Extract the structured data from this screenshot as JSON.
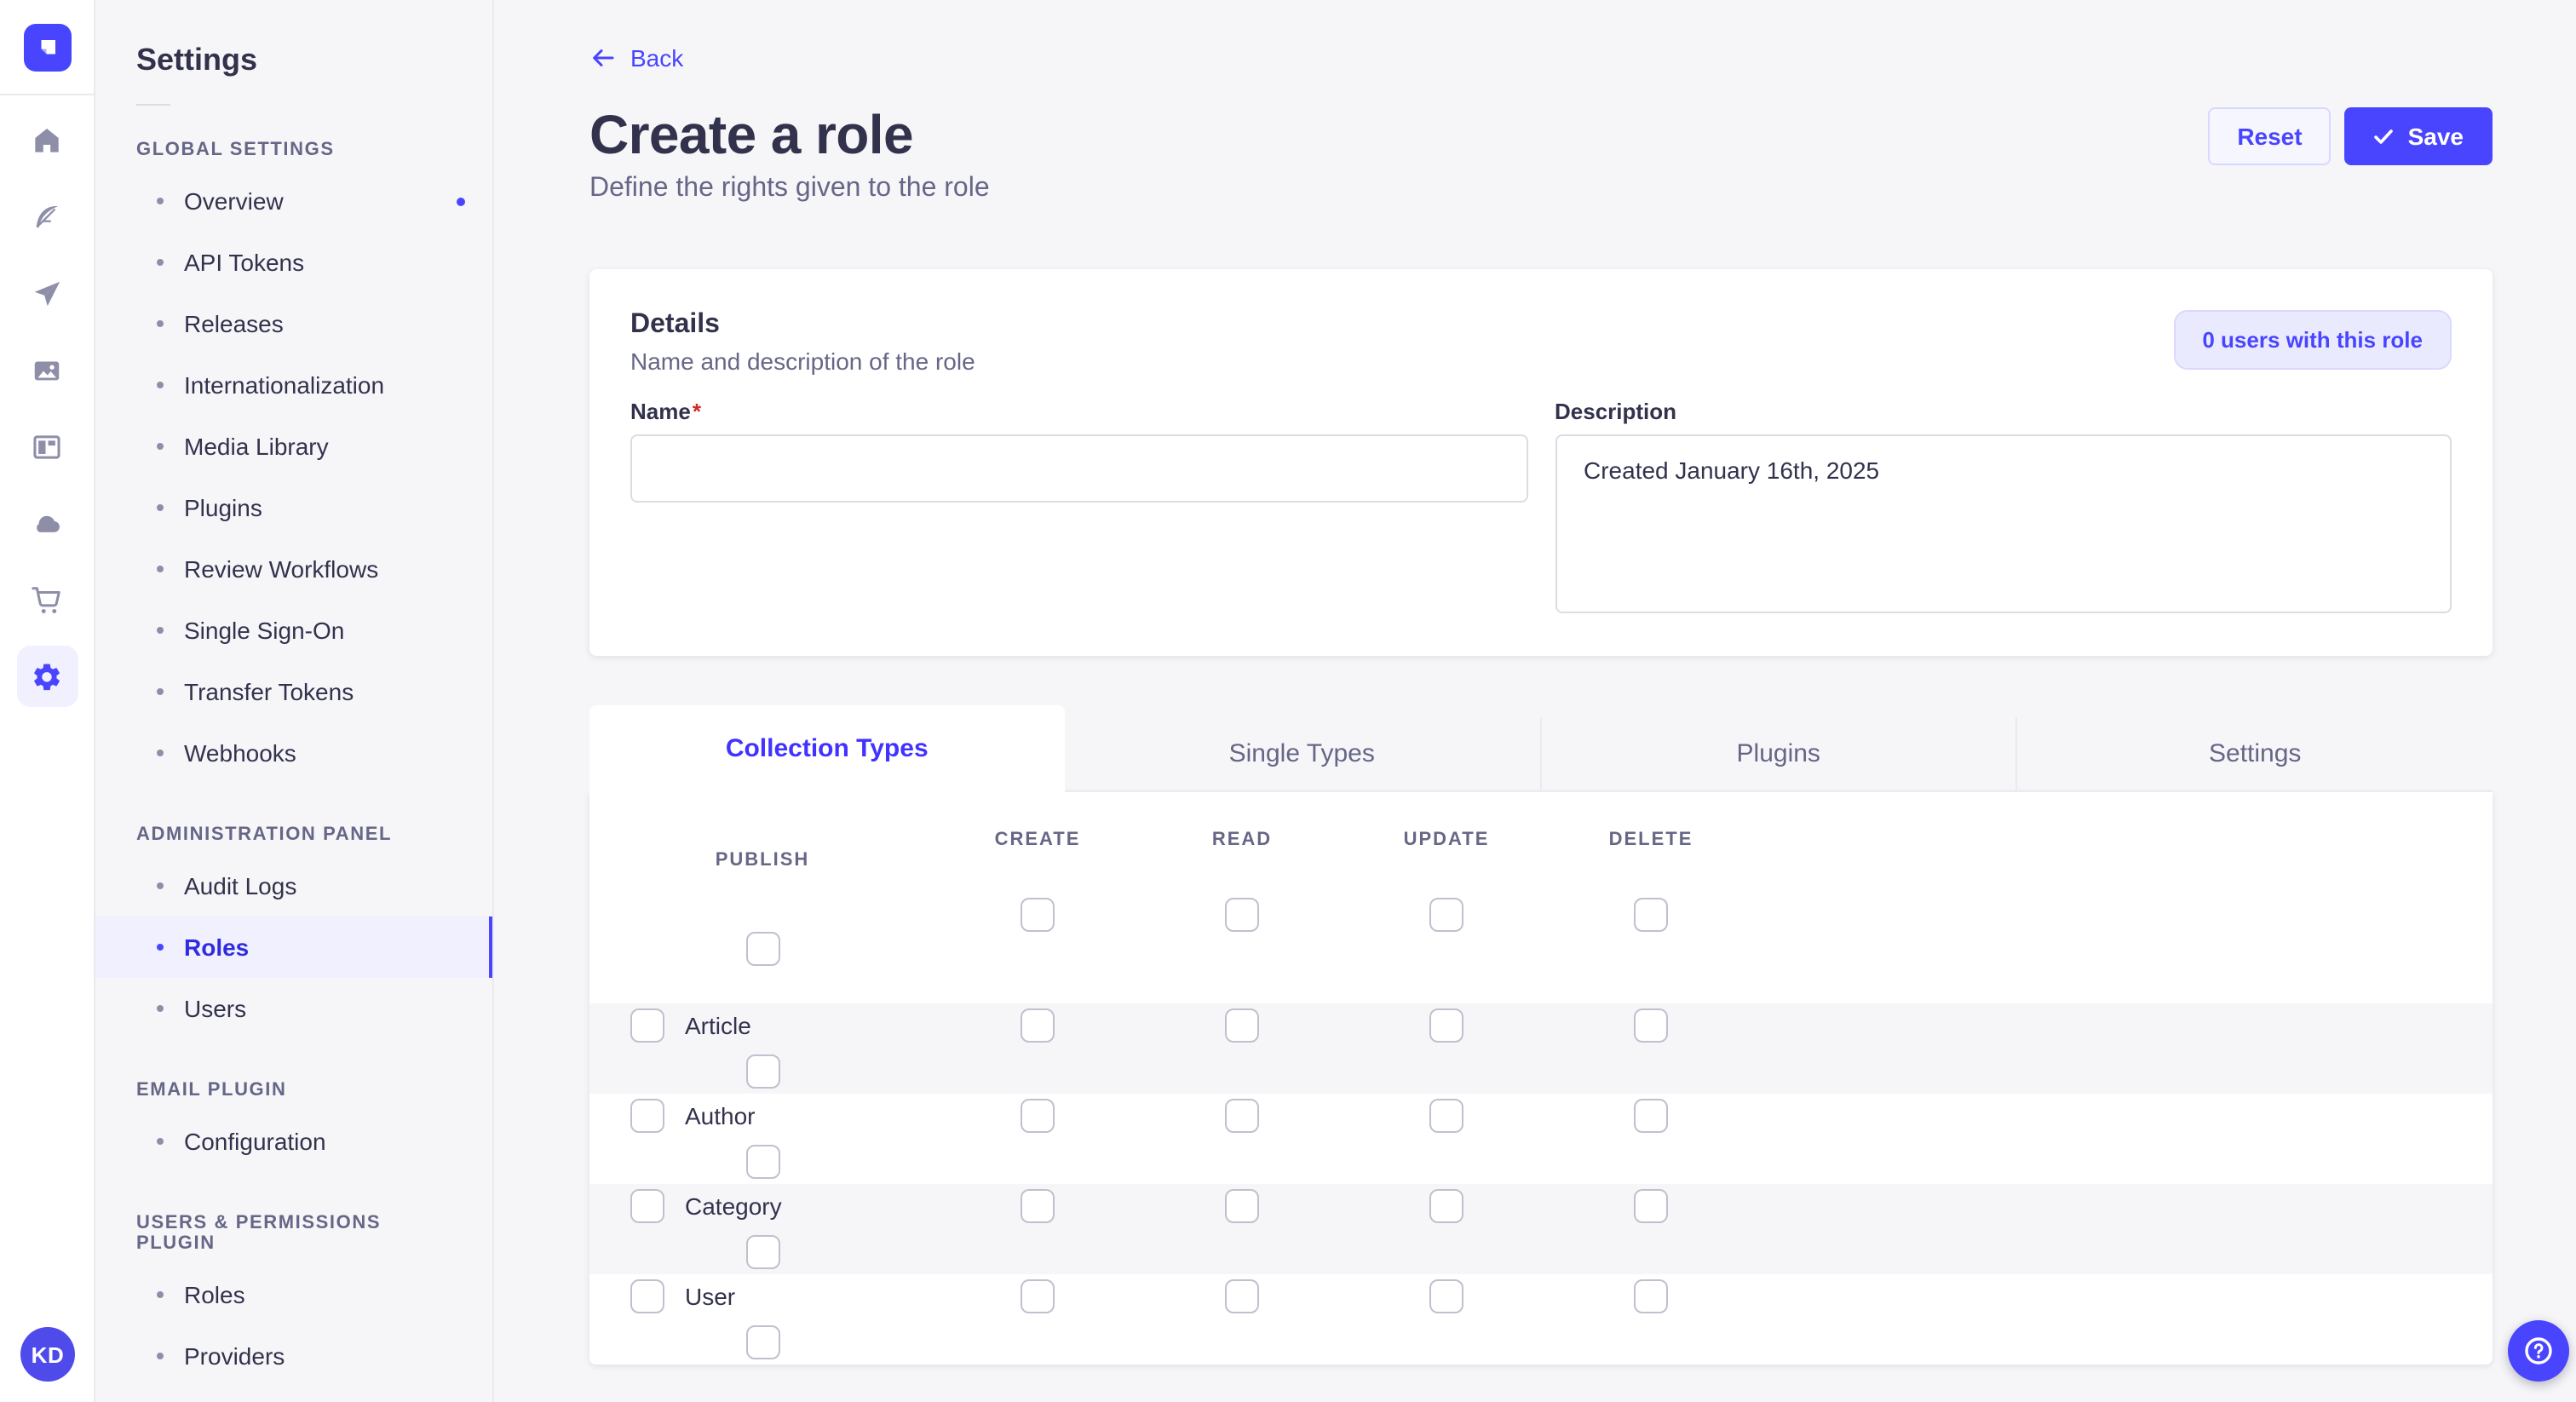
{
  "colors": {
    "accent": "#4945ff",
    "accent_light_bg": "#f0f0ff",
    "chip_bg": "#eaeaff",
    "chip_border": "#d9d8ff",
    "page_bg": "#f6f6f9",
    "card_bg": "#ffffff",
    "border": "#eaeaef",
    "input_border": "#dcdce4",
    "text_dark": "#32324d",
    "text_muted": "#666687",
    "required_red": "#d02b20"
  },
  "rail": {
    "icons": [
      {
        "name": "home"
      },
      {
        "name": "feather"
      },
      {
        "name": "paper-plane"
      },
      {
        "name": "media-library"
      },
      {
        "name": "layout"
      },
      {
        "name": "cloud"
      },
      {
        "name": "cart"
      },
      {
        "name": "gear",
        "active": true
      }
    ],
    "avatar_initials": "KD"
  },
  "sidebar": {
    "title": "Settings",
    "sections": [
      {
        "label": "Global Settings",
        "items": [
          {
            "label": "Overview",
            "notification": true
          },
          {
            "label": "API Tokens"
          },
          {
            "label": "Releases"
          },
          {
            "label": "Internationalization"
          },
          {
            "label": "Media Library"
          },
          {
            "label": "Plugins"
          },
          {
            "label": "Review Workflows"
          },
          {
            "label": "Single Sign-On"
          },
          {
            "label": "Transfer Tokens"
          },
          {
            "label": "Webhooks"
          }
        ]
      },
      {
        "label": "Administration Panel",
        "items": [
          {
            "label": "Audit Logs"
          },
          {
            "label": "Roles",
            "active": true
          },
          {
            "label": "Users"
          }
        ]
      },
      {
        "label": "Email Plugin",
        "items": [
          {
            "label": "Configuration"
          }
        ]
      },
      {
        "label": "Users & Permissions Plugin",
        "items": [
          {
            "label": "Roles"
          },
          {
            "label": "Providers"
          }
        ]
      }
    ]
  },
  "header": {
    "back_label": "Back",
    "title": "Create a role",
    "subtitle": "Define the rights given to the role",
    "reset_label": "Reset",
    "save_label": "Save"
  },
  "details": {
    "heading": "Details",
    "subheading": "Name and description of the role",
    "users_chip": "0 users with this role",
    "name_label": "Name",
    "required_mark": "*",
    "name_value": "",
    "description_label": "Description",
    "description_value": "Created January 16th, 2025"
  },
  "permissions": {
    "tabs": [
      {
        "label": "Collection Types",
        "active": true
      },
      {
        "label": "Single Types"
      },
      {
        "label": "Plugins"
      },
      {
        "label": "Settings"
      }
    ],
    "columns": [
      "Create",
      "Read",
      "Update",
      "Delete",
      "Publish"
    ],
    "rows": [
      {
        "label": "Article"
      },
      {
        "label": "Author"
      },
      {
        "label": "Category"
      },
      {
        "label": "User"
      }
    ]
  },
  "help": {
    "label": "?"
  }
}
